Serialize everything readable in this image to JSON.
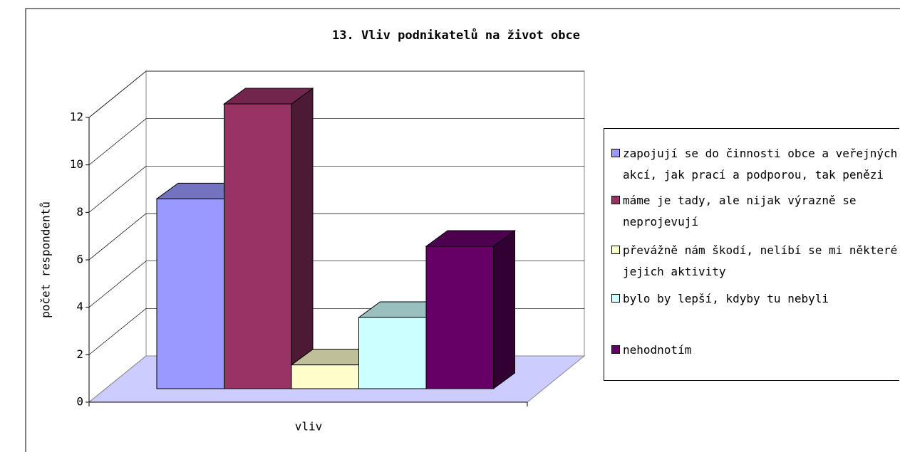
{
  "chart_data": {
    "type": "bar3d",
    "title": "13. Vliv podnikatelů na život obce",
    "y_label": "počet respondentů",
    "categories": [
      "vliv"
    ],
    "series": [
      {
        "name": "zapojují se do činnosti obce a veřejných akcí, jak prací a podporou, tak penězi",
        "color": "#9999ff",
        "values": [
          8
        ]
      },
      {
        "name": "máme je tady, ale nijak výrazně se neprojevují",
        "color": "#993366",
        "values": [
          12
        ]
      },
      {
        "name": "převážně nám škodí, nelíbí se mi některé jejich aktivity",
        "color": "#ffffcc",
        "values": [
          1
        ]
      },
      {
        "name": "bylo by lepší, kdyby tu nebyli",
        "color": "#ccffff",
        "values": [
          3
        ]
      },
      {
        "name": "nehodnotím",
        "color": "#660066",
        "values": [
          6
        ]
      }
    ],
    "ylim": [
      0,
      12
    ],
    "yticks": [
      0,
      2,
      4,
      6,
      8,
      10,
      12
    ],
    "grid": true,
    "legend": "right"
  }
}
